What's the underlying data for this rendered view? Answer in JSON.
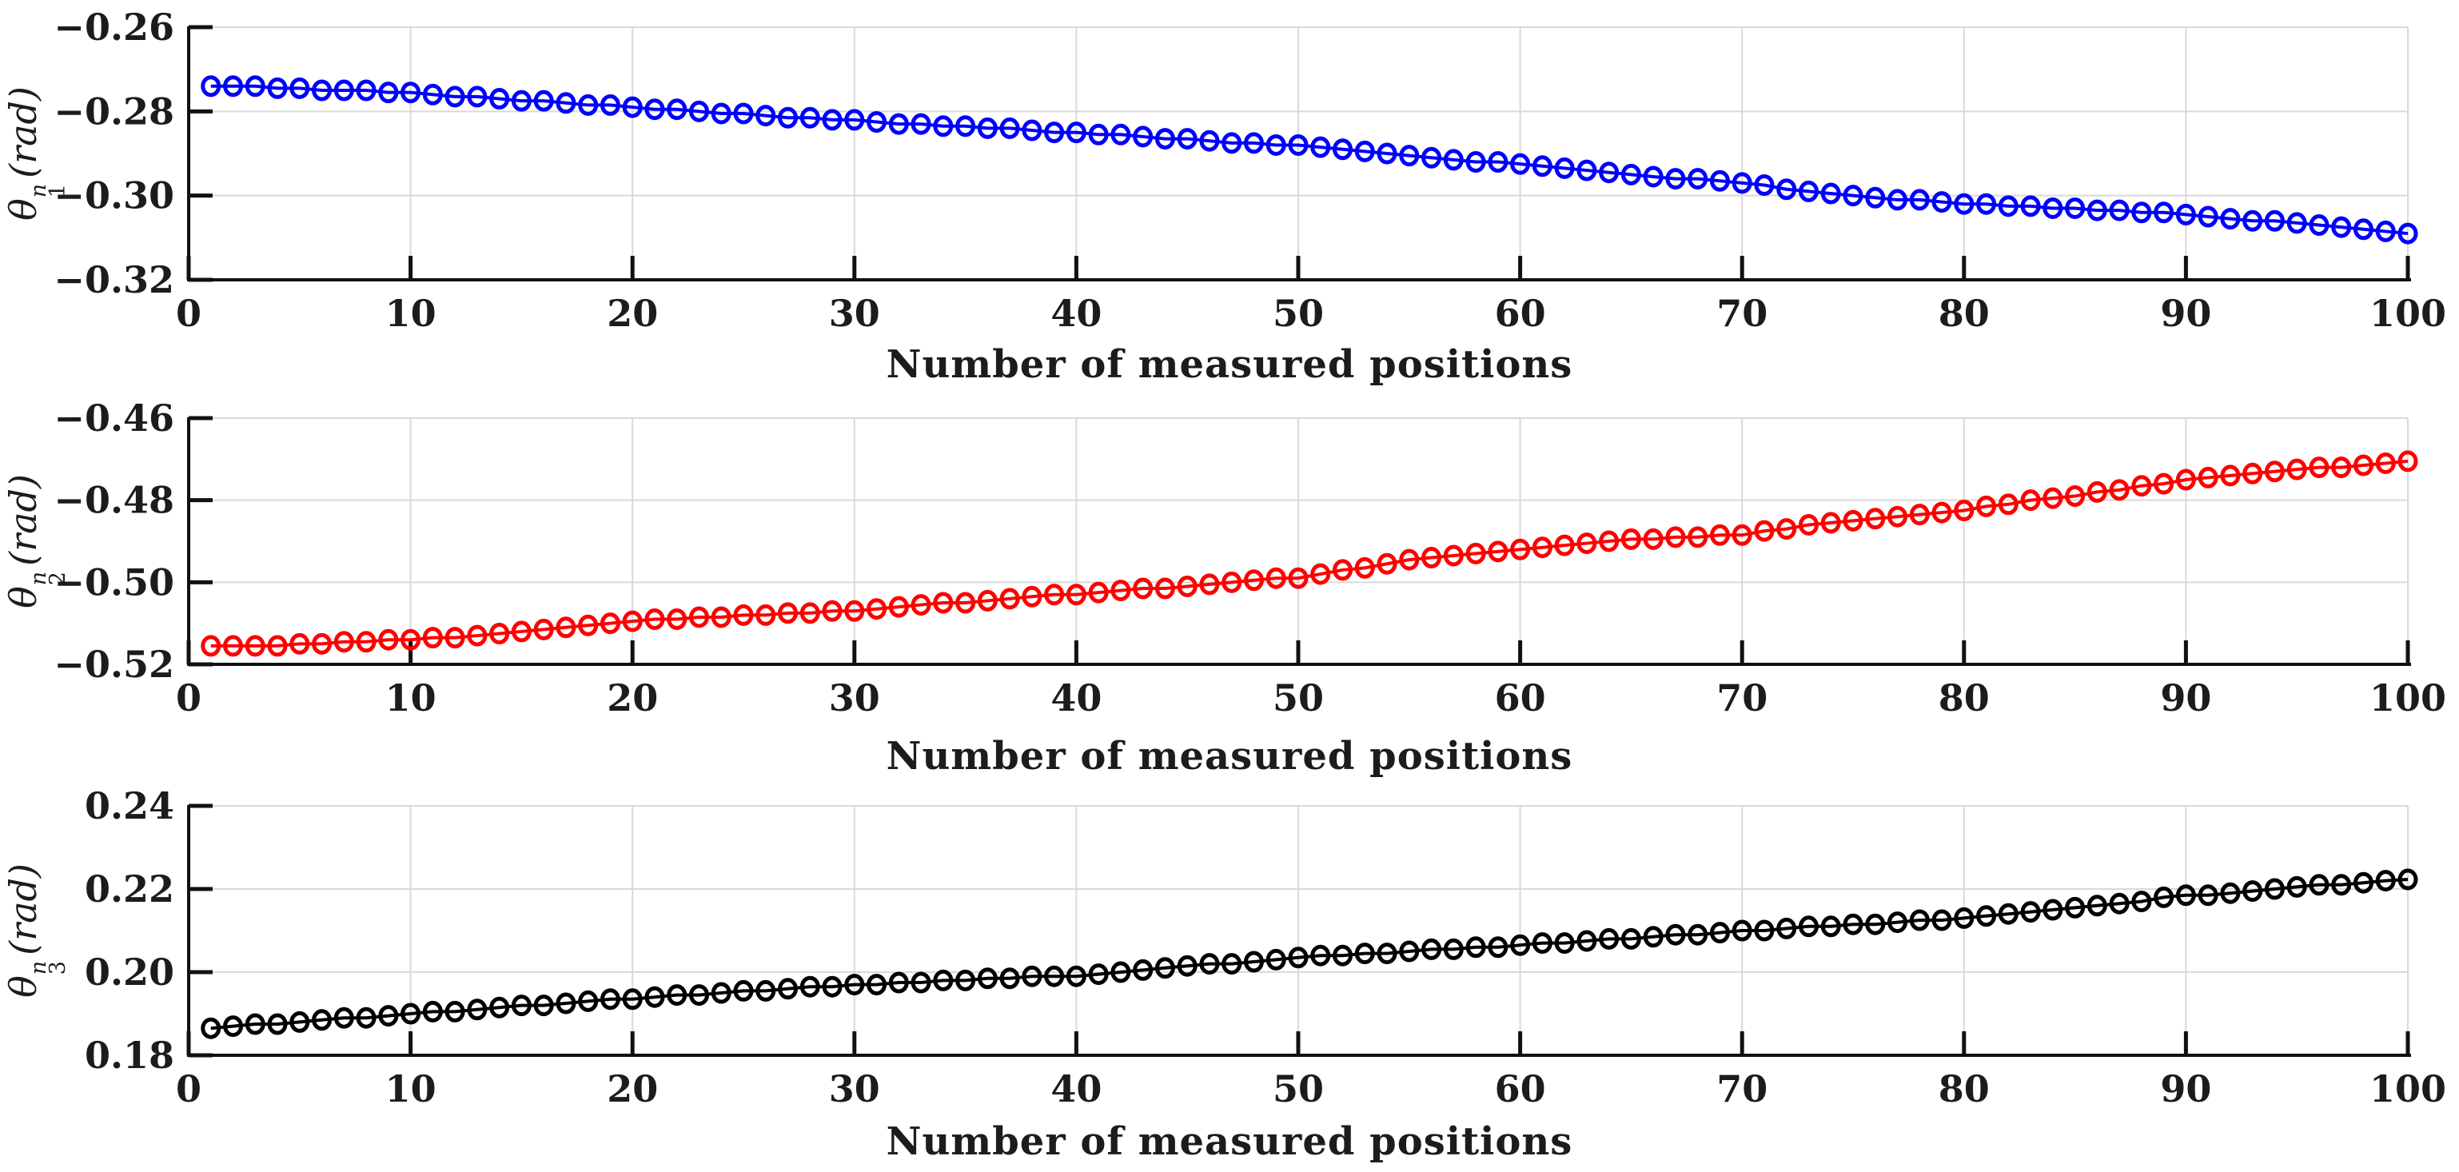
{
  "figure": {
    "background": "#ffffff",
    "axis_color": "#111111",
    "grid_color": "#d9d9d9",
    "tick_label_color": "#1c1c1c",
    "grid": "on",
    "legend": "none"
  },
  "chart_data": [
    {
      "type": "line",
      "marker": "circle",
      "series_color": "#0000ff",
      "xlabel": "Number of measured positions",
      "ylabel": {
        "symbol": "θ",
        "sub": "1",
        "sup": "n",
        "unit": "(rad)"
      },
      "xlim": [
        0,
        100
      ],
      "ylim": [
        -0.32,
        -0.26
      ],
      "x_ticks": [
        0,
        10,
        20,
        30,
        40,
        50,
        60,
        70,
        80,
        90,
        100
      ],
      "x_tick_labels": [
        "0",
        "10",
        "20",
        "30",
        "40",
        "50",
        "60",
        "70",
        "80",
        "90",
        "100"
      ],
      "y_ticks": [
        -0.26,
        -0.28,
        -0.3,
        -0.32
      ],
      "y_tick_labels": [
        "−0.26",
        "−0.28",
        "−0.30",
        "−0.32"
      ],
      "x": [
        1,
        2,
        3,
        4,
        5,
        6,
        7,
        8,
        9,
        10,
        11,
        12,
        13,
        14,
        15,
        16,
        17,
        18,
        19,
        20,
        21,
        22,
        23,
        24,
        25,
        26,
        27,
        28,
        29,
        30,
        31,
        32,
        33,
        34,
        35,
        36,
        37,
        38,
        39,
        40,
        41,
        42,
        43,
        44,
        45,
        46,
        47,
        48,
        49,
        50,
        51,
        52,
        53,
        54,
        55,
        56,
        57,
        58,
        59,
        60,
        61,
        62,
        63,
        64,
        65,
        66,
        67,
        68,
        69,
        70,
        71,
        72,
        73,
        74,
        75,
        76,
        77,
        78,
        79,
        80,
        81,
        82,
        83,
        84,
        85,
        86,
        87,
        88,
        89,
        90,
        91,
        92,
        93,
        94,
        95,
        96,
        97,
        98,
        99,
        100
      ],
      "y": [
        -0.274,
        -0.274,
        -0.274,
        -0.2745,
        -0.2745,
        -0.275,
        -0.275,
        -0.275,
        -0.2755,
        -0.2755,
        -0.276,
        -0.2765,
        -0.2765,
        -0.277,
        -0.2775,
        -0.2775,
        -0.278,
        -0.2785,
        -0.2785,
        -0.279,
        -0.2795,
        -0.2795,
        -0.28,
        -0.2805,
        -0.2805,
        -0.281,
        -0.2815,
        -0.2815,
        -0.282,
        -0.282,
        -0.2825,
        -0.283,
        -0.283,
        -0.2835,
        -0.2835,
        -0.284,
        -0.284,
        -0.2845,
        -0.285,
        -0.285,
        -0.2855,
        -0.2855,
        -0.286,
        -0.2865,
        -0.2865,
        -0.287,
        -0.2875,
        -0.2875,
        -0.288,
        -0.288,
        -0.2885,
        -0.289,
        -0.2895,
        -0.29,
        -0.2905,
        -0.291,
        -0.2915,
        -0.292,
        -0.292,
        -0.2925,
        -0.293,
        -0.2935,
        -0.294,
        -0.2945,
        -0.295,
        -0.2955,
        -0.296,
        -0.296,
        -0.2965,
        -0.297,
        -0.2975,
        -0.2985,
        -0.299,
        -0.2995,
        -0.3,
        -0.3005,
        -0.301,
        -0.301,
        -0.3015,
        -0.302,
        -0.302,
        -0.3025,
        -0.3025,
        -0.303,
        -0.303,
        -0.3035,
        -0.3035,
        -0.304,
        -0.304,
        -0.3045,
        -0.305,
        -0.3055,
        -0.306,
        -0.306,
        -0.3065,
        -0.307,
        -0.3075,
        -0.308,
        -0.3085,
        -0.309
      ]
    },
    {
      "type": "line",
      "marker": "circle",
      "series_color": "#ff0000",
      "xlabel": "Number of measured positions",
      "ylabel": {
        "symbol": "θ",
        "sub": "2",
        "sup": "n",
        "unit": "(rad)"
      },
      "xlim": [
        0,
        100
      ],
      "ylim": [
        -0.52,
        -0.46
      ],
      "x_ticks": [
        0,
        10,
        20,
        30,
        40,
        50,
        60,
        70,
        80,
        90,
        100
      ],
      "x_tick_labels": [
        "0",
        "10",
        "20",
        "30",
        "40",
        "50",
        "60",
        "70",
        "80",
        "90",
        "100"
      ],
      "y_ticks": [
        -0.46,
        -0.48,
        -0.5,
        -0.52
      ],
      "y_tick_labels": [
        "−0.46",
        "−0.48",
        "−0.50",
        "−0.52"
      ],
      "x": [
        1,
        2,
        3,
        4,
        5,
        6,
        7,
        8,
        9,
        10,
        11,
        12,
        13,
        14,
        15,
        16,
        17,
        18,
        19,
        20,
        21,
        22,
        23,
        24,
        25,
        26,
        27,
        28,
        29,
        30,
        31,
        32,
        33,
        34,
        35,
        36,
        37,
        38,
        39,
        40,
        41,
        42,
        43,
        44,
        45,
        46,
        47,
        48,
        49,
        50,
        51,
        52,
        53,
        54,
        55,
        56,
        57,
        58,
        59,
        60,
        61,
        62,
        63,
        64,
        65,
        66,
        67,
        68,
        69,
        70,
        71,
        72,
        73,
        74,
        75,
        76,
        77,
        78,
        79,
        80,
        81,
        82,
        83,
        84,
        85,
        86,
        87,
        88,
        89,
        90,
        91,
        92,
        93,
        94,
        95,
        96,
        97,
        98,
        99,
        100
      ],
      "y": [
        -0.5155,
        -0.5155,
        -0.5155,
        -0.5155,
        -0.515,
        -0.515,
        -0.5145,
        -0.5145,
        -0.514,
        -0.514,
        -0.5135,
        -0.5135,
        -0.513,
        -0.5125,
        -0.512,
        -0.5115,
        -0.511,
        -0.5105,
        -0.51,
        -0.5095,
        -0.509,
        -0.509,
        -0.5085,
        -0.5085,
        -0.508,
        -0.508,
        -0.5075,
        -0.5075,
        -0.507,
        -0.507,
        -0.5065,
        -0.506,
        -0.5055,
        -0.505,
        -0.505,
        -0.5045,
        -0.504,
        -0.5035,
        -0.503,
        -0.503,
        -0.5025,
        -0.502,
        -0.5015,
        -0.5015,
        -0.501,
        -0.5005,
        -0.5,
        -0.4995,
        -0.499,
        -0.499,
        -0.498,
        -0.497,
        -0.4965,
        -0.4955,
        -0.4945,
        -0.494,
        -0.4935,
        -0.493,
        -0.4925,
        -0.492,
        -0.4915,
        -0.491,
        -0.4905,
        -0.49,
        -0.4895,
        -0.4895,
        -0.489,
        -0.489,
        -0.4885,
        -0.4885,
        -0.4875,
        -0.487,
        -0.486,
        -0.4855,
        -0.485,
        -0.4845,
        -0.484,
        -0.4835,
        -0.483,
        -0.4825,
        -0.4815,
        -0.481,
        -0.48,
        -0.4795,
        -0.479,
        -0.478,
        -0.4775,
        -0.4765,
        -0.476,
        -0.475,
        -0.4745,
        -0.474,
        -0.4735,
        -0.473,
        -0.4725,
        -0.472,
        -0.472,
        -0.4715,
        -0.471,
        -0.4705
      ]
    },
    {
      "type": "line",
      "marker": "circle",
      "series_color": "#000000",
      "xlabel": "Number of measured positions",
      "ylabel": {
        "symbol": "θ",
        "sub": "3",
        "sup": "n",
        "unit": "(rad)"
      },
      "xlim": [
        0,
        100
      ],
      "ylim": [
        0.18,
        0.24
      ],
      "x_ticks": [
        0,
        10,
        20,
        30,
        40,
        50,
        60,
        70,
        80,
        90,
        100
      ],
      "x_tick_labels": [
        "0",
        "10",
        "20",
        "30",
        "40",
        "50",
        "60",
        "70",
        "80",
        "90",
        "100"
      ],
      "y_ticks": [
        0.24,
        0.22,
        0.2,
        0.18
      ],
      "y_tick_labels": [
        "0.24",
        "0.22",
        "0.20",
        "0.18"
      ],
      "x": [
        1,
        2,
        3,
        4,
        5,
        6,
        7,
        8,
        9,
        10,
        11,
        12,
        13,
        14,
        15,
        16,
        17,
        18,
        19,
        20,
        21,
        22,
        23,
        24,
        25,
        26,
        27,
        28,
        29,
        30,
        31,
        32,
        33,
        34,
        35,
        36,
        37,
        38,
        39,
        40,
        41,
        42,
        43,
        44,
        45,
        46,
        47,
        48,
        49,
        50,
        51,
        52,
        53,
        54,
        55,
        56,
        57,
        58,
        59,
        60,
        61,
        62,
        63,
        64,
        65,
        66,
        67,
        68,
        69,
        70,
        71,
        72,
        73,
        74,
        75,
        76,
        77,
        78,
        79,
        80,
        81,
        82,
        83,
        84,
        85,
        86,
        87,
        88,
        89,
        90,
        91,
        92,
        93,
        94,
        95,
        96,
        97,
        98,
        99,
        100
      ],
      "y": [
        0.1865,
        0.187,
        0.1875,
        0.1875,
        0.188,
        0.1885,
        0.189,
        0.189,
        0.1895,
        0.19,
        0.1905,
        0.1905,
        0.191,
        0.1915,
        0.192,
        0.192,
        0.1925,
        0.193,
        0.1935,
        0.1935,
        0.194,
        0.1945,
        0.1945,
        0.195,
        0.1955,
        0.1955,
        0.196,
        0.1965,
        0.1965,
        0.197,
        0.197,
        0.1975,
        0.1975,
        0.198,
        0.198,
        0.1985,
        0.1985,
        0.199,
        0.199,
        0.199,
        0.1995,
        0.2,
        0.2005,
        0.201,
        0.2015,
        0.202,
        0.202,
        0.2025,
        0.203,
        0.2035,
        0.204,
        0.204,
        0.2045,
        0.2045,
        0.205,
        0.2055,
        0.2055,
        0.206,
        0.206,
        0.2065,
        0.207,
        0.207,
        0.2075,
        0.208,
        0.208,
        0.2085,
        0.209,
        0.209,
        0.2095,
        0.21,
        0.21,
        0.2105,
        0.211,
        0.211,
        0.2115,
        0.2115,
        0.212,
        0.2125,
        0.2125,
        0.213,
        0.2135,
        0.214,
        0.2145,
        0.215,
        0.2155,
        0.216,
        0.2165,
        0.217,
        0.218,
        0.2185,
        0.2185,
        0.219,
        0.2195,
        0.22,
        0.2205,
        0.221,
        0.221,
        0.2215,
        0.222,
        0.2223
      ]
    }
  ]
}
